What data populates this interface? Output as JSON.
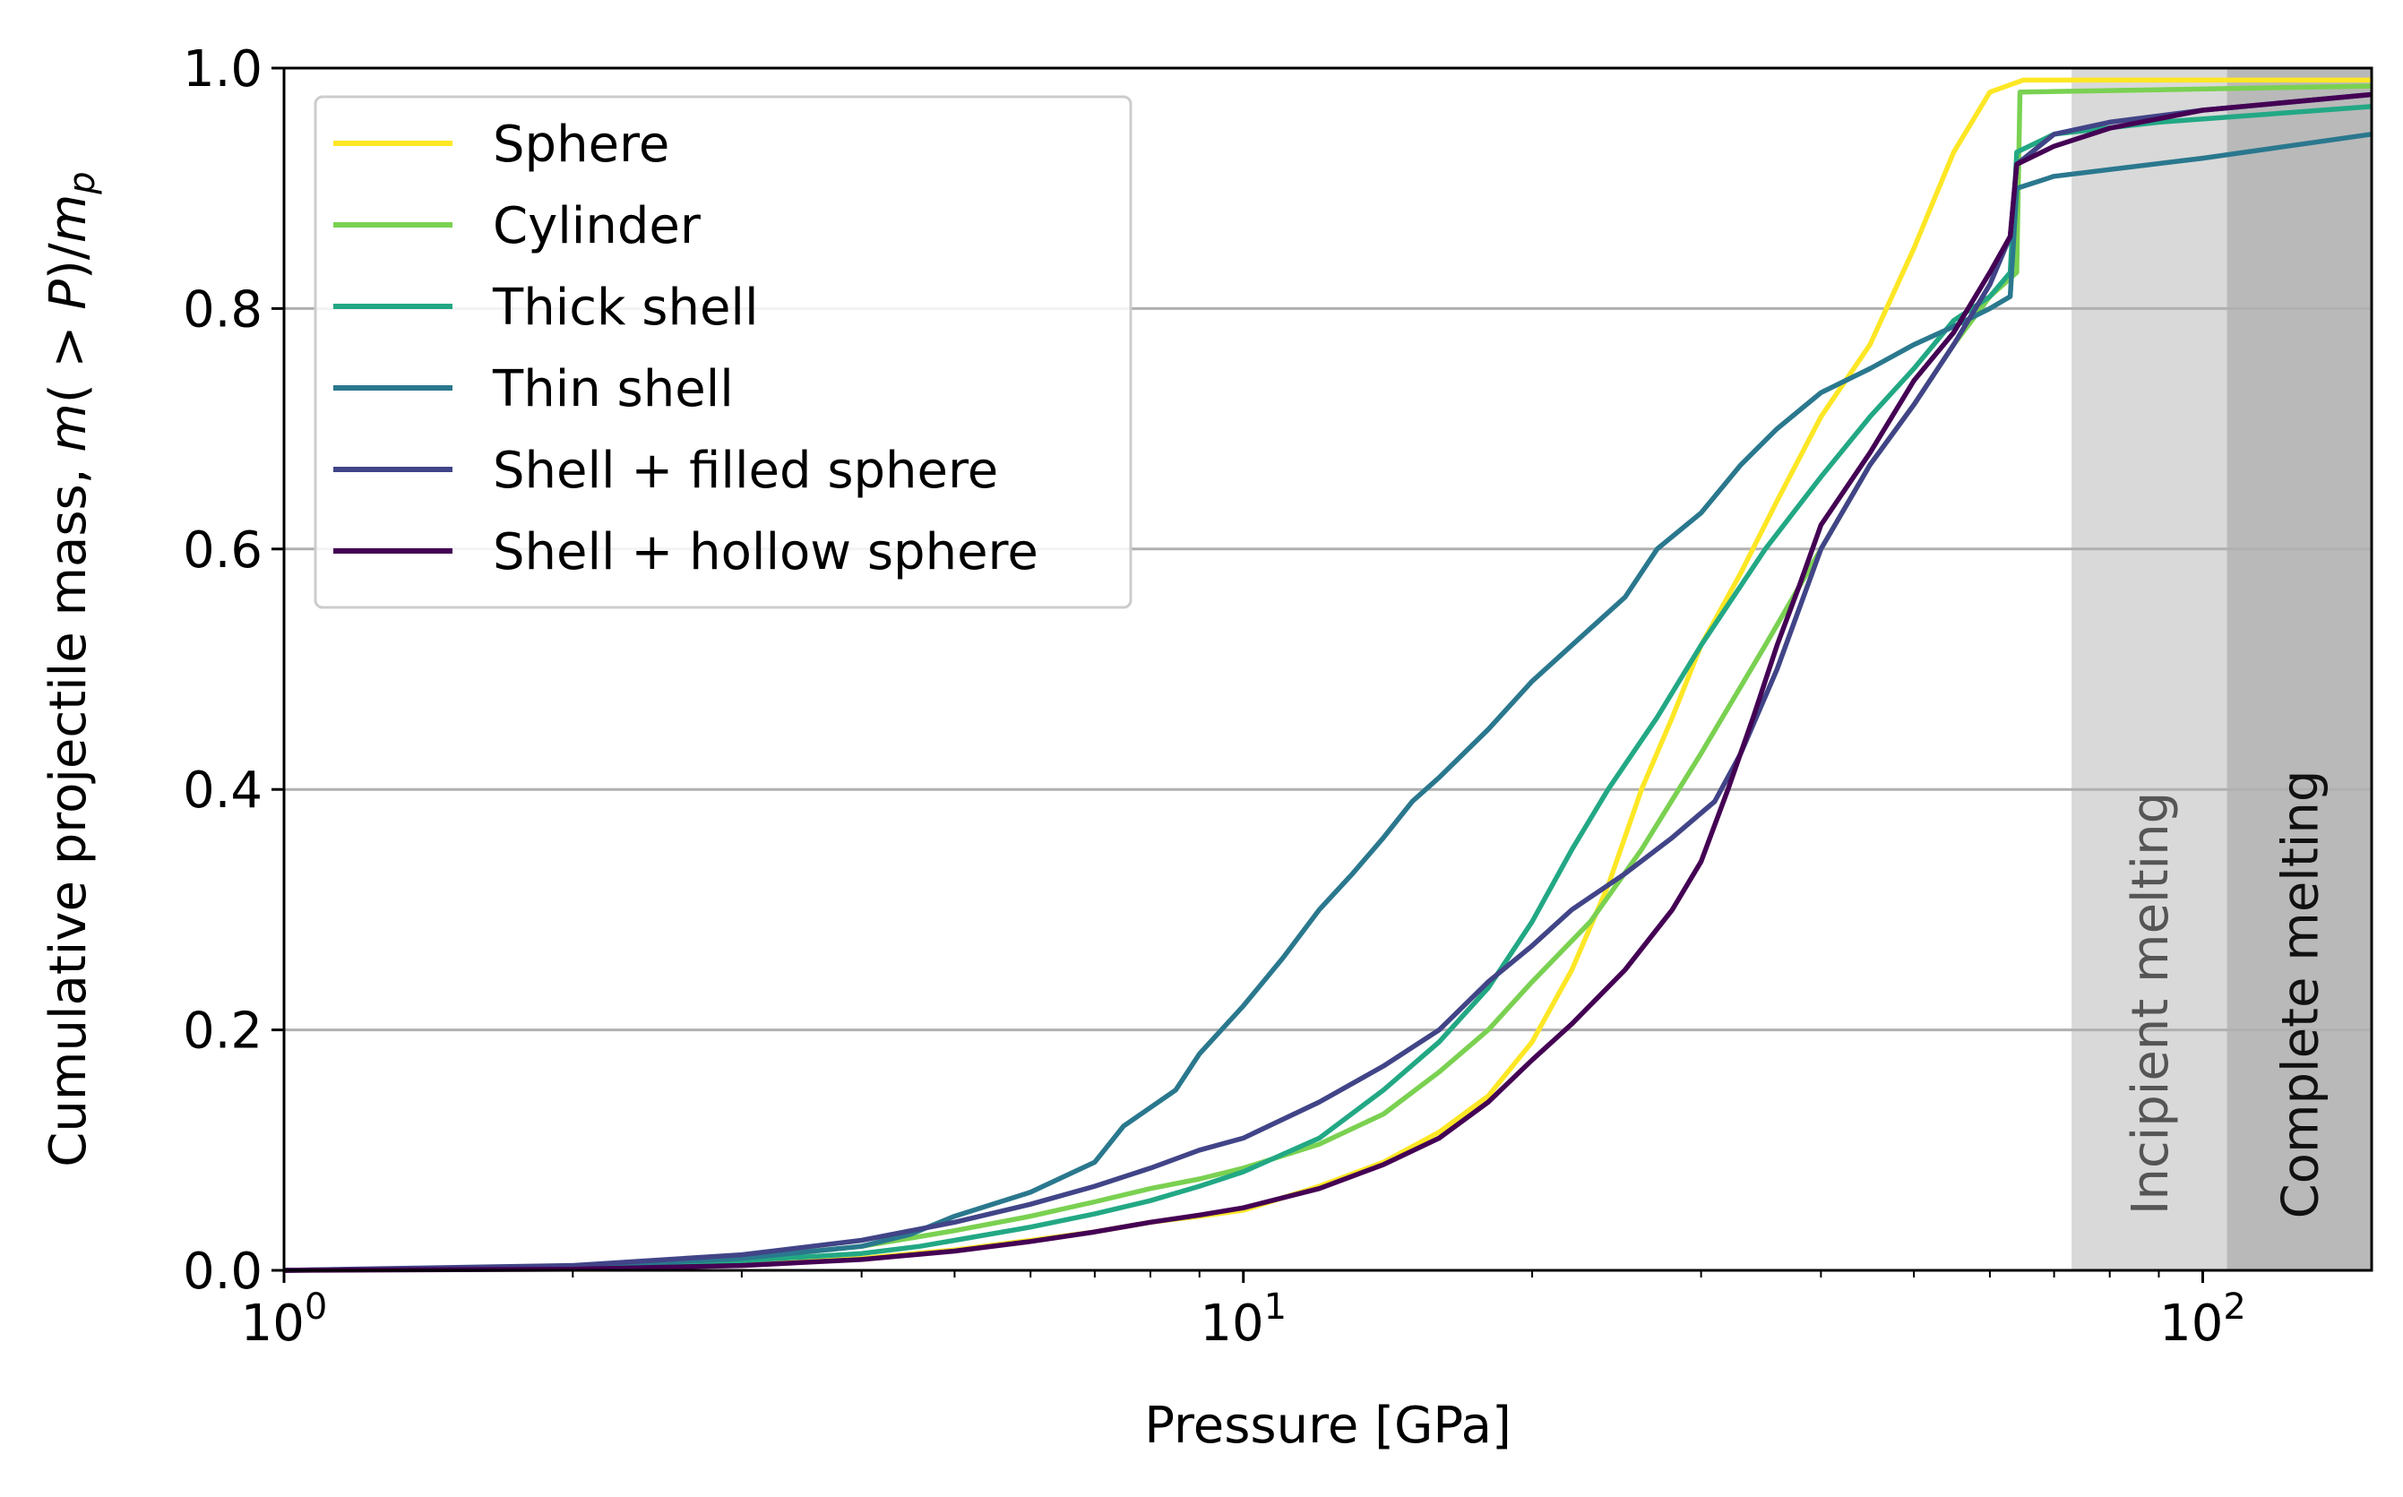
{
  "chart_data": {
    "type": "line",
    "title": "",
    "xlabel": "Pressure [GPa]",
    "ylabel_prefix": "Cumulative projectile mass, ",
    "ylabel_math_m": "m",
    "ylabel_math_mid": "( > ",
    "ylabel_math_P": "P",
    "ylabel_math_end": ")/",
    "ylabel_math_m2": "m",
    "ylabel_math_sub": "p",
    "xscale": "log",
    "xlim": [
      1,
      150
    ],
    "ylim": [
      0,
      1
    ],
    "x_ticks": [
      {
        "value": 1,
        "base": "10",
        "exp": "0"
      },
      {
        "value": 10,
        "base": "10",
        "exp": "1"
      },
      {
        "value": 100,
        "base": "10",
        "exp": "2"
      }
    ],
    "y_ticks": [
      {
        "value": 0.0,
        "label": "0.0"
      },
      {
        "value": 0.2,
        "label": "0.2"
      },
      {
        "value": 0.4,
        "label": "0.4"
      },
      {
        "value": 0.6,
        "label": "0.6"
      },
      {
        "value": 0.8,
        "label": "0.8"
      },
      {
        "value": 1.0,
        "label": "1.0"
      }
    ],
    "grid": "horizontal",
    "legend_position": "top-left",
    "bands": [
      {
        "label": "Incipient melting",
        "x_start": 73,
        "x_end": 106,
        "color": "#d9d9d9",
        "text_color": "#555555"
      },
      {
        "label": "Complete melting",
        "x_start": 106,
        "x_end": 150,
        "color": "#b9b9b9",
        "text_color": "#111111"
      }
    ],
    "series": [
      {
        "name": "Sphere",
        "color": "#fde725",
        "points": [
          [
            1,
            0
          ],
          [
            2,
            0.002
          ],
          [
            3,
            0.004
          ],
          [
            4,
            0.01
          ],
          [
            5,
            0.017
          ],
          [
            6,
            0.025
          ],
          [
            7,
            0.032
          ],
          [
            8,
            0.04
          ],
          [
            9,
            0.045
          ],
          [
            10,
            0.05
          ],
          [
            12,
            0.07
          ],
          [
            14,
            0.09
          ],
          [
            16,
            0.115
          ],
          [
            18,
            0.145
          ],
          [
            20,
            0.19
          ],
          [
            22,
            0.25
          ],
          [
            24,
            0.32
          ],
          [
            26,
            0.4
          ],
          [
            28,
            0.46
          ],
          [
            30,
            0.52
          ],
          [
            33,
            0.58
          ],
          [
            36,
            0.64
          ],
          [
            40,
            0.71
          ],
          [
            45,
            0.77
          ],
          [
            50,
            0.85
          ],
          [
            55,
            0.93
          ],
          [
            60,
            0.98
          ],
          [
            65,
            0.99
          ],
          [
            150,
            0.99
          ]
        ]
      },
      {
        "name": "Cylinder",
        "color": "#7ad151",
        "points": [
          [
            1,
            0
          ],
          [
            2,
            0.003
          ],
          [
            3,
            0.01
          ],
          [
            4,
            0.02
          ],
          [
            5,
            0.033
          ],
          [
            6,
            0.045
          ],
          [
            7,
            0.057
          ],
          [
            8,
            0.068
          ],
          [
            9,
            0.076
          ],
          [
            10,
            0.085
          ],
          [
            12,
            0.105
          ],
          [
            14,
            0.13
          ],
          [
            16,
            0.165
          ],
          [
            18,
            0.2
          ],
          [
            20,
            0.24
          ],
          [
            23,
            0.29
          ],
          [
            26,
            0.35
          ],
          [
            30,
            0.43
          ],
          [
            35,
            0.52
          ],
          [
            40,
            0.6
          ],
          [
            45,
            0.67
          ],
          [
            50,
            0.72
          ],
          [
            55,
            0.77
          ],
          [
            60,
            0.81
          ],
          [
            64,
            0.83
          ],
          [
            64.5,
            0.98
          ],
          [
            150,
            0.985
          ]
        ]
      },
      {
        "name": "Thick shell",
        "color": "#22a884",
        "points": [
          [
            1,
            0
          ],
          [
            2,
            0.002
          ],
          [
            3,
            0.008
          ],
          [
            4,
            0.014
          ],
          [
            4.6,
            0.02
          ],
          [
            5,
            0.025
          ],
          [
            6,
            0.036
          ],
          [
            7,
            0.047
          ],
          [
            8,
            0.058
          ],
          [
            9,
            0.07
          ],
          [
            10,
            0.082
          ],
          [
            12,
            0.11
          ],
          [
            14,
            0.15
          ],
          [
            16,
            0.19
          ],
          [
            18,
            0.235
          ],
          [
            20,
            0.29
          ],
          [
            22,
            0.35
          ],
          [
            24,
            0.4
          ],
          [
            27,
            0.46
          ],
          [
            30,
            0.52
          ],
          [
            35,
            0.6
          ],
          [
            40,
            0.66
          ],
          [
            45,
            0.71
          ],
          [
            50,
            0.75
          ],
          [
            55,
            0.79
          ],
          [
            60,
            0.81
          ],
          [
            63,
            0.83
          ],
          [
            64,
            0.93
          ],
          [
            70,
            0.945
          ],
          [
            90,
            0.955
          ],
          [
            150,
            0.968
          ]
        ]
      },
      {
        "name": "Thin shell",
        "color": "#2a788e",
        "points": [
          [
            1,
            0
          ],
          [
            2,
            0.003
          ],
          [
            3,
            0.01
          ],
          [
            4,
            0.02
          ],
          [
            4.5,
            0.03
          ],
          [
            5,
            0.045
          ],
          [
            6,
            0.065
          ],
          [
            7,
            0.09
          ],
          [
            7.5,
            0.12
          ],
          [
            8.5,
            0.15
          ],
          [
            9,
            0.18
          ],
          [
            10,
            0.22
          ],
          [
            11,
            0.26
          ],
          [
            12,
            0.3
          ],
          [
            13,
            0.33
          ],
          [
            14,
            0.36
          ],
          [
            15,
            0.39
          ],
          [
            16,
            0.41
          ],
          [
            18,
            0.45
          ],
          [
            20,
            0.49
          ],
          [
            22,
            0.52
          ],
          [
            25,
            0.56
          ],
          [
            27,
            0.6
          ],
          [
            30,
            0.63
          ],
          [
            33,
            0.67
          ],
          [
            36,
            0.7
          ],
          [
            40,
            0.73
          ],
          [
            45,
            0.75
          ],
          [
            50,
            0.77
          ],
          [
            55,
            0.785
          ],
          [
            60,
            0.8
          ],
          [
            63,
            0.81
          ],
          [
            64,
            0.9
          ],
          [
            70,
            0.91
          ],
          [
            100,
            0.925
          ],
          [
            150,
            0.945
          ]
        ]
      },
      {
        "name": "Shell + filled sphere",
        "color": "#414487",
        "points": [
          [
            1,
            0
          ],
          [
            2,
            0.004
          ],
          [
            3,
            0.013
          ],
          [
            4,
            0.025
          ],
          [
            5,
            0.04
          ],
          [
            6,
            0.055
          ],
          [
            7,
            0.07
          ],
          [
            8,
            0.085
          ],
          [
            9,
            0.1
          ],
          [
            10,
            0.11
          ],
          [
            12,
            0.14
          ],
          [
            14,
            0.17
          ],
          [
            16,
            0.2
          ],
          [
            18,
            0.24
          ],
          [
            20,
            0.27
          ],
          [
            22,
            0.3
          ],
          [
            25,
            0.33
          ],
          [
            28,
            0.36
          ],
          [
            31,
            0.39
          ],
          [
            33,
            0.43
          ],
          [
            36,
            0.5
          ],
          [
            40,
            0.6
          ],
          [
            45,
            0.67
          ],
          [
            50,
            0.72
          ],
          [
            55,
            0.77
          ],
          [
            60,
            0.82
          ],
          [
            63,
            0.86
          ],
          [
            64,
            0.92
          ],
          [
            70,
            0.945
          ],
          [
            80,
            0.955
          ],
          [
            100,
            0.965
          ],
          [
            150,
            0.978
          ]
        ]
      },
      {
        "name": "Shell + hollow sphere",
        "color": "#440154",
        "points": [
          [
            1,
            0
          ],
          [
            2,
            0.001
          ],
          [
            3,
            0.004
          ],
          [
            4,
            0.009
          ],
          [
            5,
            0.016
          ],
          [
            6,
            0.024
          ],
          [
            7,
            0.032
          ],
          [
            8,
            0.04
          ],
          [
            9,
            0.046
          ],
          [
            10,
            0.052
          ],
          [
            12,
            0.068
          ],
          [
            14,
            0.088
          ],
          [
            16,
            0.11
          ],
          [
            18,
            0.14
          ],
          [
            20,
            0.175
          ],
          [
            22,
            0.205
          ],
          [
            25,
            0.25
          ],
          [
            28,
            0.3
          ],
          [
            30,
            0.34
          ],
          [
            32,
            0.4
          ],
          [
            34,
            0.46
          ],
          [
            36,
            0.52
          ],
          [
            38,
            0.57
          ],
          [
            40,
            0.62
          ],
          [
            45,
            0.68
          ],
          [
            50,
            0.74
          ],
          [
            55,
            0.78
          ],
          [
            60,
            0.83
          ],
          [
            63,
            0.86
          ],
          [
            64,
            0.92
          ],
          [
            70,
            0.935
          ],
          [
            80,
            0.95
          ],
          [
            100,
            0.965
          ],
          [
            150,
            0.978
          ]
        ]
      }
    ]
  }
}
